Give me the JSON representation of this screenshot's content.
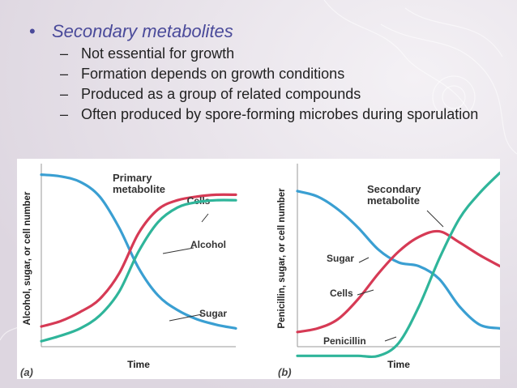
{
  "slide": {
    "main_bullet": "Secondary metabolites",
    "sub_bullets": [
      "Not essential for growth",
      "Formation depends on growth conditions",
      "Produced as a group of related compounds",
      "Often produced by spore-forming microbes during sporulation"
    ]
  },
  "colors": {
    "bullet": "#4a4a9a",
    "sugar": "#3a9fd2",
    "cells": "#d63a55",
    "product": "#2fb59a"
  },
  "chart_data": [
    {
      "type": "line",
      "panel_label": "(a)",
      "title": "",
      "xlabel": "Time",
      "ylabel": "Alcohol, sugar, or cell number",
      "annotation": "Primary metabolite",
      "x": [
        0,
        1,
        2,
        3,
        4,
        5,
        6,
        7,
        8,
        9,
        10
      ],
      "series": [
        {
          "name": "Sugar",
          "values": [
            94,
            93,
            90,
            82,
            65,
            43,
            28,
            20,
            15,
            12,
            10
          ]
        },
        {
          "name": "Cells",
          "values": [
            11,
            14,
            19,
            26,
            40,
            62,
            75,
            80,
            82,
            83,
            83
          ]
        },
        {
          "name": "Alcohol",
          "values": [
            3,
            6,
            10,
            17,
            30,
            52,
            68,
            76,
            79,
            80,
            80
          ]
        }
      ],
      "ylim": [
        0,
        100
      ],
      "grid": false
    },
    {
      "type": "line",
      "panel_label": "(b)",
      "title": "",
      "xlabel": "Time",
      "ylabel": "Penicillin, sugar, or cell number",
      "annotation": "Secondary metabolite",
      "x": [
        0,
        1,
        2,
        3,
        4,
        5,
        6,
        7,
        8,
        9,
        10
      ],
      "series": [
        {
          "name": "Sugar",
          "values": [
            85,
            82,
            75,
            65,
            53,
            46,
            44,
            37,
            22,
            12,
            10
          ]
        },
        {
          "name": "Cells",
          "values": [
            8,
            10,
            15,
            26,
            40,
            52,
            60,
            63,
            57,
            50,
            44
          ]
        },
        {
          "name": "Penicillin",
          "values": [
            -5,
            -5,
            -5,
            -5,
            -5,
            2,
            22,
            48,
            70,
            84,
            95
          ]
        }
      ],
      "ylim": [
        0,
        100
      ],
      "grid": false
    }
  ]
}
